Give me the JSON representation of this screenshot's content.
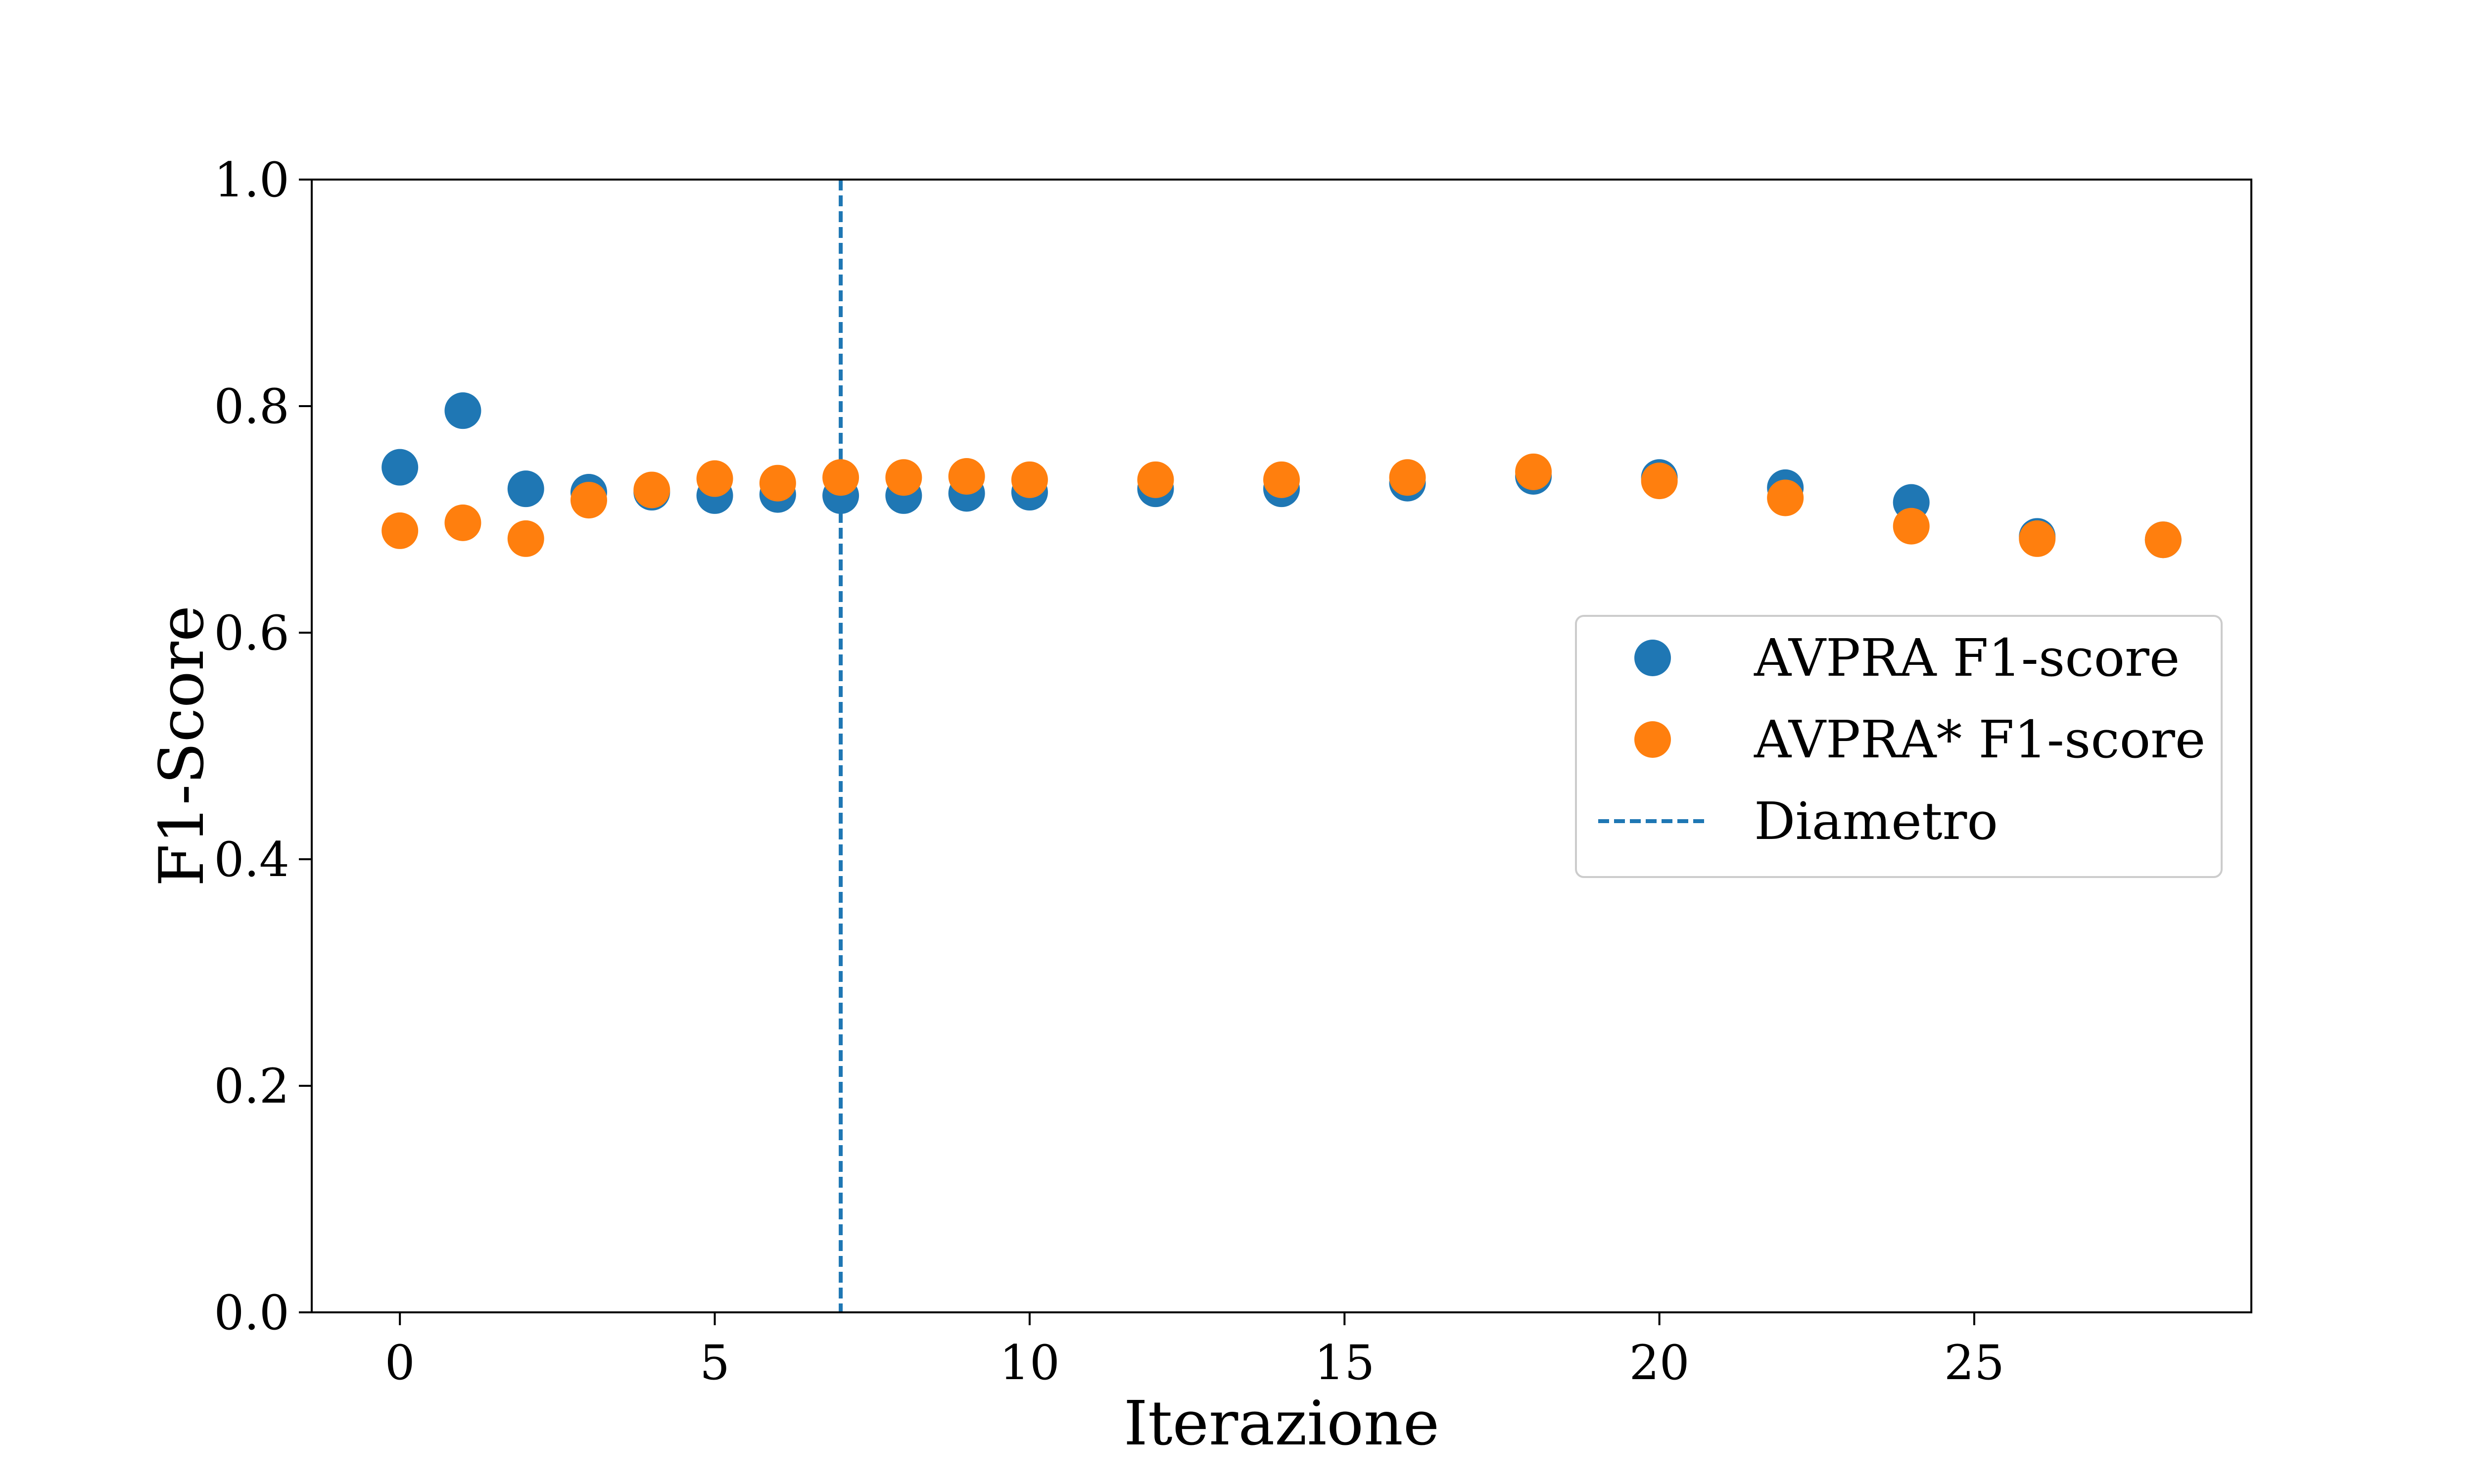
{
  "chart_data": {
    "type": "scatter",
    "title": "",
    "xlabel": "Iterazione",
    "ylabel": "F1-Score",
    "xlim": [
      -1.4,
      29.4
    ],
    "ylim": [
      0.0,
      1.0
    ],
    "xticks": [
      0,
      5,
      10,
      15,
      20,
      25
    ],
    "yticks": [
      0.0,
      0.2,
      0.4,
      0.6,
      0.8,
      1.0
    ],
    "grid": false,
    "legend_position": "center-right",
    "series": [
      {
        "name": "AVPRA F1-score",
        "color": "#1f77b4",
        "x": [
          0,
          1,
          2,
          3,
          4,
          5,
          6,
          7,
          8,
          9,
          10,
          12,
          14,
          16,
          18,
          20,
          22,
          24,
          26,
          28
        ],
        "y": [
          0.746,
          0.796,
          0.727,
          0.724,
          0.724,
          0.721,
          0.722,
          0.721,
          0.721,
          0.723,
          0.724,
          0.727,
          0.727,
          0.732,
          0.738,
          0.737,
          0.728,
          0.715,
          0.685,
          0.682
        ]
      },
      {
        "name": "AVPRA* F1-score",
        "color": "#ff7f0e",
        "x": [
          0,
          1,
          2,
          3,
          4,
          5,
          6,
          7,
          8,
          9,
          10,
          12,
          14,
          16,
          18,
          20,
          22,
          24,
          26,
          28
        ],
        "y": [
          0.69,
          0.697,
          0.683,
          0.717,
          0.726,
          0.736,
          0.732,
          0.737,
          0.737,
          0.738,
          0.735,
          0.735,
          0.735,
          0.737,
          0.742,
          0.734,
          0.719,
          0.694,
          0.683,
          0.682
        ]
      }
    ],
    "vline": {
      "name": "Diametro",
      "x": 7,
      "color": "#1f77b4",
      "style": "dashed"
    }
  }
}
